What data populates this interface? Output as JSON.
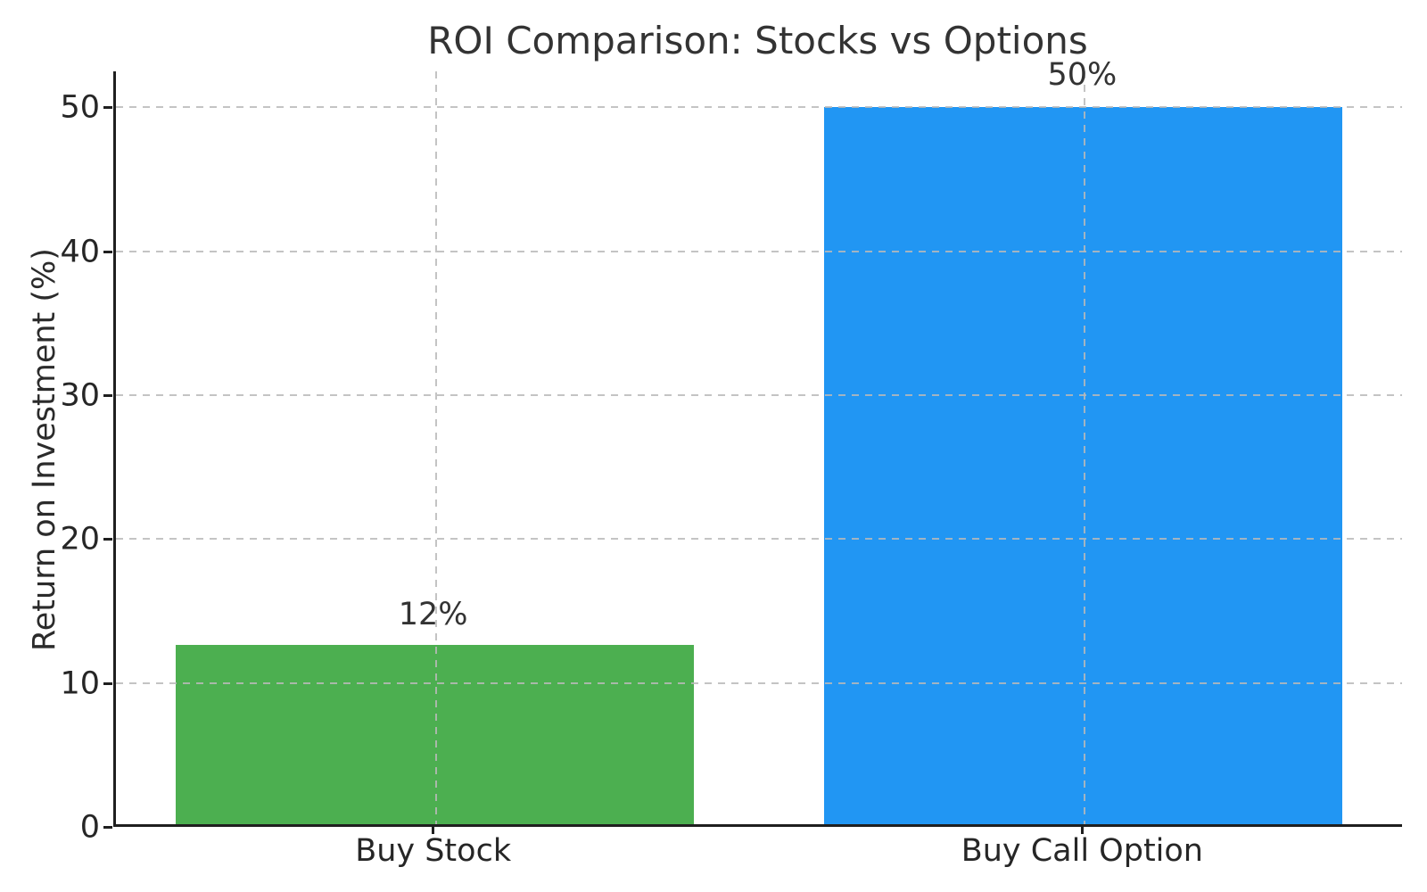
{
  "chart_data": {
    "type": "bar",
    "title": "ROI Comparison: Stocks vs Options",
    "ylabel": "Return on Investment (%)",
    "xlabel": "",
    "categories": [
      "Buy Stock",
      "Buy Call Option"
    ],
    "values": [
      12.5,
      50
    ],
    "bar_labels": [
      "12%",
      "50%"
    ],
    "bar_colors": [
      "#4caf50",
      "#2196f3"
    ],
    "yticks": [
      0,
      10,
      20,
      30,
      40,
      50
    ],
    "ylim": [
      0,
      52.5
    ],
    "grid": "dashed horizontal and vertical gridlines, drawn over bars",
    "gridline_color": "#c9c9c9",
    "spine_color": "#1f1f1f",
    "text_color": "#333333",
    "legend": "none"
  }
}
